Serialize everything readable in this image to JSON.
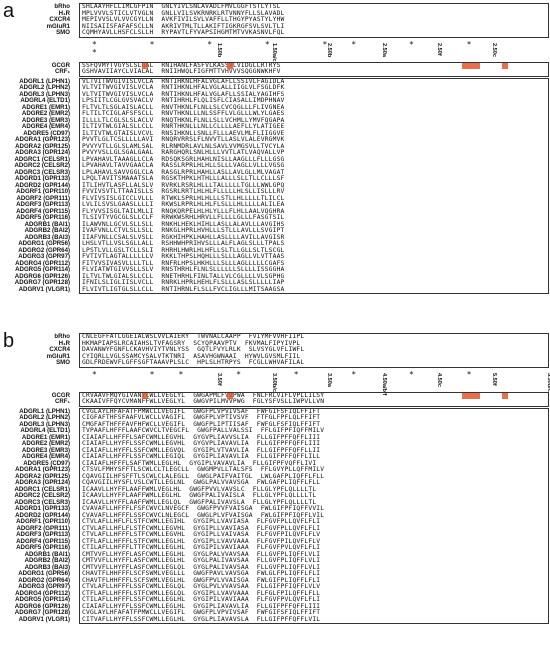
{
  "panels": [
    {
      "letter": "a",
      "top_labels": [
        "bRho",
        "H₁R",
        "CXCR4",
        "mGluR1",
        "SMO"
      ],
      "top_seqs": [
        "SHLAAYHFLLIMLGFPIN  GNLYIVLSNLAVADLFMVLGGFTSTLYTSL",
        "MPLVVVLSTICLVTVGLN  GNLLVILSVKRNRKLRTVNNYFLLSLAVADL",
        "MEPIVVSLVLVVCGYLLN  AVKFIVILSVLVAFFLLTHGYPYASTYLYHW",
        "NIISAIISFAFAFSCLLN  AKRIVTMLTLLAKIFTIGKRGFSVLSVLTLI",
        "CQMHYAVLLHSFCLSLLH  RYPAVTLFYVAPSIHGMTMTVVKASNVLFQL"
      ],
      "ref_labels": [
        "GCGR",
        "CRF₁"
      ],
      "ref_seqs": [
        "SSFQVMYTVGYSLSLGAL  RNIHANLFASFVLKASSVLVIDGLLRTRYS",
        "GSHVAVIIAYCLVIALAL  RNIIHWQLFIGFMTTVHVVVSQGGNWKHFV"
      ],
      "gpcr_labels": [
        "ADGRL1 (LPHN1)",
        "ADGRL2 (LPHN2)",
        "ADGRL3 (LPHN3)",
        "ADGRL4 (ELTD1)",
        "ADGRE1 (EMR1)",
        "ADGRE2 (EMR2)",
        "ADGRE3 (EMR3)",
        "ADGRE4 (EMR4)",
        "ADGRE5 (CD97)",
        "ADGRA1 (GPR123)",
        "ADGRA2 (GPR125)",
        "ADGRA3 (GPR124)",
        "ADGRC1 (CELSR1)",
        "ADGRC2 (CELSR2)",
        "ADGRC3 (CELSR3)",
        "ADGRD1 (GPR133)",
        "ADGRD2 (GPR144)",
        "ADGRF1 (GPR110)",
        "ADGRF2 (GPR111)",
        "ADGRF3 (GPR113)",
        "ADGRF4 (GPR115)",
        "ADGRF5 (GPR116)",
        "ADGRB1 (BAI1)",
        "ADGRB2 (BAI2)",
        "ADGRB3 (BAI3)",
        "ADGRG1 (GPR56)",
        "ADGRG2 (GPR64)",
        "ADGRG3 (GPR97)",
        "ADGRG4 (GPR112)",
        "ADGRG5 (GPR114)",
        "ADGRG6 (GPR126)",
        "ADGRG7 (GPR128)",
        "ADGRV1 (VLGR1)"
      ],
      "gpcr_seqs": [
        "VLTVITWVGIVISLVCLA  RNTIHKNLHFALVGLAFLLSSIVLFAGIDLA",
        "VLTVITWVGIVISLVCLA  RNTIHKNLHFALVGLALLIIGLVLFSGLDFK",
        "VLTVITWVGIVISLVCLA  RNTIHKNLHFALVGLAFLLSSIALYAGIHFS",
        "LPSIITLCGLGVSVACLV  RNTIHRHLFLQLISFLCIASALLIMDPHNAV",
        "FLTVLTLSGLAISLACLL  RNVTHKNLFLNLLSLCVCQGLLLFLIVGNEA",
        "FLTILTCIGLAFSFSCLL  RNVTHKNLLLNLSSFFLVLGLLLWLYLGAES",
        "ILLLLTLCGLSLSLACLV  RNQTHKNLFLNLLSLLVCHMLLYMVFQGAPA",
        "ILTIVTWLGIALSLLCLL  RNRTHKNLLLNLLCLLLLAEFLLYLATIGEE",
        "ILTIVTWLGTAISLVCVL  RNSIHKNLLSNLLFLLLAEVLMLFLIIGGVE",
        "PVVTLGLTCSLLLLLAVI  RNQRVRRSLFLNVVTLLASLVLALEVRGMVK",
        "PVVYVTLLGLSLAMLSAL  RLRNMDRLAVLNLSAVLVVMGSVLLTVCYLA",
        "PVVYVSLLGLSGALGAAL  RARGHQRLSNLHLLLVVTLATLVAQVALLVP",
        "LPVAHAVLTAAAGLLCLA  RDSQKSGRLHAHLNISLLAAGLLLFLLLGSG",
        "LPVAHAVLTAVVGAACLA  RASSLRPRLHLHLLSLLLVAGLLVLLLVGSG",
        "LPLAHAVLSAVVGGLCLA  RASGLRPRLHAHLLASLLAVLGLLMLVAGAT",
        "LPQLTAVITSMAAATSLA  RGSKTHPKLHTHLLLALLLSLLTLLCLLLSF",
        "ITLIHVTLASFLLALSLV  RVRKLRSRLHLLLTALLLLLTGLLLWWLGPQ",
        "FVVIVSVTLTTAAISLLS  RGSRLRRTLHLHLFLLLLLHLSLLISLLLRV",
        "FLVIVSISLGICCLVLLL  RTWKLSPRLHLHLLLSTLLHLLLLLTLILCL",
        "LVLILSVSLGAASLLLLI  RKWSLRPRLHLHLFLSLLLHLLLLLALILEA",
        "FLYVVSISGLTAILMLLI  RNQKQRPELHLHLYLLLFLHLLAALVQGHRA",
        "TLSIVTYVGCGLSLLCLF  RRWKWSRHLHRVLLFLLLLGLLLFASGTSIL",
        "ILAWVNLLGCVLSLLSLL  RNKHLHEKLHIHLLASLLALAVLLLAVGIHS",
        "IVAFVNLLCTVLSLLSLL  RNKGLHPRLHVHLLLSTLLLAVLLLSVGIPT",
        "IIAFVNLLCSALSLVSLL  RGKHIHPKLHAHLLASLLLLAVILLAVGISR",
        "LHSLVTLLVSLSGLLALL  RSHHWHPRIHVSLLLALFLAGLSLLLTPALS",
        "LPSTLVLLGSLTCLLSLI  RHRHLHWRLHLHFLLSLTLLGLLSLTLSCGL",
        "FVTIVTLAGTALLLLLLV  RKKLTHPSLHQHLLLSLLLAGLLVLVTTAAS",
        "FITVVSIVASVLLLLTLL  RNFRLHPSLHKHLLLSLLLAGLLLLLCGAFS",
        "FLVIATWTGIVVSLLSLV  RNSTHRHLFLNLSLLLLLLSLLLLISSGGHA",
        "ILTVLTWLGIALSLLCLL  RNETHRHLFINLTALLVLCGLLLLVLSGPHG",
        "IFNILSLIGLIISLVCLL  RNRKLHPRLHEHLFLSLLLASLSLLLLLIAP",
        "FLVIVTLIGTGLSLLCLL  RNTIHRNLFLSLLFVCLIGLLLMITSAAGSA"
      ],
      "stars": "* * * * ** * * *",
      "bw_labels": [
        "1.50b",
        "1.50a/c",
        "2.50b",
        "2.50a",
        "2.50f",
        "2.50c"
      ]
    },
    {
      "letter": "b",
      "top_labels": [
        "bRho",
        "H₁R",
        "CXCR4",
        "mGluR1",
        "SMO"
      ],
      "top_seqs": [
        "CNLEGFFATLGGEIALWSLVVLAIERY  TWVNALCAAPP  FVIYMFVVHFIIPL",
        "HKMAPIAPSLRCAIAHSLTVFAGSRY  SCYQPAAVPTV  FKVMALFIPYIVPL",
        "DAVANWYFGNFLCKAVHVIYTVNLYSS  GQTLFVYLRLK  SLVSYGLVFLIWFL",
        "CYIQRLLVGLSSAMCYSALVTKTNRI  ASAVHGWNAAI  HYWVLGVSMLFIIL",
        "GDLFRDEWVFLGFFSGFTAAAVPLSLC  HPLSLHTRPYS  FCGLLWHVAFILAL"
      ],
      "ref_labels": [
        "GCGR",
        "CRF₁"
      ],
      "ref_seqs": [
        "CRVAAVFMQYGIVANYCWLLVEGLYL  GWGAPMLFVVPWA  FNLFRLVIFLVPLLILSY",
        "CKAAIVFFQYCVMANFFWLLVEGLYL  GWGVPILMVVPWG  FGLYSFVSLLIWPVLLVN"
      ],
      "gpcr_labels": [
        "ADGRL1 (LPHN1)",
        "ADGRL2 (LPHN2)",
        "ADGRL3 (LPHN3)",
        "ADGRL4 (ELTD1)",
        "ADGRE1 (EMR1)",
        "ADGRE2 (EMR2)",
        "ADGRE3 (EMR3)",
        "ADGRE4 (EMR4)",
        "ADGRE5 (CD97)",
        "ADGRA1 (GPR123)",
        "ADGRA2 (GPR125)",
        "ADGRA3 (GPR124)",
        "ADGRC1 (CELSR1)",
        "ADGRC2 (CELSR2)",
        "ADGRC3 (CELSR3)",
        "ADGRD1 (GPR133)",
        "ADGRD2 (GPR144)",
        "ADGRF1 (GPR110)",
        "ADGRF2 (GPR111)",
        "ADGRF3 (GPR113)",
        "ADGRF4 (GPR115)",
        "ADGRF5 (GPR116)",
        "ADGRB1 (BAI1)",
        "ADGRB2 (BAI2)",
        "ADGRB3 (BAI3)",
        "ADGRG1 (GPR56)",
        "ADGRG2 (GPR64)",
        "ADGRG3 (GPR97)",
        "ADGRG4 (GPR112)",
        "ADGRG5 (GPR114)",
        "ADGRG6 (GPR126)",
        "ADGRG7 (GPR128)",
        "ADGRV1 (VLGR1)"
      ],
      "gpcr_seqs": [
        "CVGLAYLHFAFATFPMWCLLVEGIFL  GWGFPLVPVIVSAF  FWFGIFSFIQLFFIFT",
        "CIGFAFTHFSFAAFVLWCLLVAGIFL  GWGFPLVPTIVSVF  FTFGLFPFLQLFFIFT",
        "CMGFAFTHFFFAVFHFWCLLVEGIFL  GWGFPLIPTIISAF  FWFGLFSFIQLFFIFT",
        "TVPAAFLHFFFLAAFCWVCLTVEGCFL  GWGFPALLVALSSI  FFLGIFPFIQFFMILV",
        "CIAIAFLLHFFFLSAFCWMLLEGVHL  GYGVPLIAVVSLIA  FLLGIFPFFQFFLIII",
        "CIAIAFLLHYFFLSSFCWMLLEGVHL  GYGVPLIAVAVLIA  FLLGIFPFFQFFLIII",
        "CIAIAFLLHYFFLSSFCWMLLEGVQL  GYGIPLVTVAVLIA  FLLGIFPFFQFFLLII",
        "CIAIAFLLHFFFLSSFCWMLLEGIQL  GYGIPLIAVAVLIA  FLLGIFPFFQFFLILL",
        "CIAIAFLHFFFLSAFTWMLLEGLHL  GYGIPLVAVAVLIA  FLLGIFPFVQFFLIVI",
        "CTSVLFMHYSFFTLSCWLCLTLEGCLL  GWGMPVLLTALSFS  FFLGVYPLLQFFMILV",
        "CQAVGIILHFSFFTLSCWLCLALEGLL  GWGLPAIFVAITGL  LWLGAFPLIQFFLFLL",
        "CQAVGIILHYSFLVSLCWTLLEGLNL  GWGLPALVVAVSGA  FWLGAFPLIQFFLFLL",
        "ICAAVLLHYFFLAAFFWMLVEGLHL  GWGFPVVLVAVSLC  FLLGLYPFLQLLLLTL",
        "ICAAVLLHYFFLAAFFWMLLEGLHL  GWGFPALIVAISLA  FLLGLYPFLQLLLLTL",
        "ICAAVLLHYFFLAAFFWMLLEGLQL  GWGFPALIVAVSLA  FLLGLYPFLQLLLLTL",
        "CVAVAFLLHFFFLFSFCWVCLNVEGCF  GWGFPVVFVAISGA  FWLGIFPFIQFFVVIL",
        "CVAVAFLLHFFFLSSFCWVCLNLEGCL  GWGLPLVFVAISGA  FWLGIFPFIQFFLVIL",
        "CTVLAFLLHFLFLSTFCWMLLEGIHL  GYGIPLLVAVIASA  FLFGVFPLLQVFLFLI",
        "CTVLAFLLHFLFLSTFCWMLLEGVHL  GYGIPLLVAVIASA  FLFGVFPLLQVFLFLI",
        "CTVLAFLLHFFFLSTFCWMLLEGVHL  GYGIPLLVAIVASA  FLFGVFPILQVFLFLV",
        "CTFLAFLLHFFFLSTFCWMLLEGLHL  GYGIPLLVAVVAAA  FLFGVFPILQVFLFLV",
        "CTILAFLLHFFFLTTFCWMLLEGLHL  GYGIPILVAVIAAA  FLFGVFPVLQVFLFLI",
        "CMTVVFLLHYFFLASFCWMLLEGLHL  GYGLPALVVAVSAA  FLLGVFPLIQFFLVLI",
        "CMTVVFLLHYFFLASFCWMLLEGLHL  GYGLPALIVAVSAA  FLLGVFPLIQFFLVLI",
        "CMTVVFLLHYFFLASFCWMLLEGLQL  GYGLPALIVAVSAA  FLLGVFPLIQFFLVLI",
        "CHAVTFLHHFFFLSCFSWMLVEGLLL  GWGFPAVLVAVSGA  FWLGLFPLIQFFLFLI",
        "CHAVTFLHHFFFLSCFSWMLVEGLHL  GWGFPVLVVAISGA  FWLGIFPLIQFFLFLI",
        "CTVLAFLLHFFFLSSFCWMLLEGLQL  GYGLPVLVVAVSAA  FLLGIFPFIQFFLVLV",
        "CTFLAFLLHFFFLSTFCWMLLEGLQL  GYGIPLLVAVVAAA  FLFGLFPILQFFLFLL",
        "CTILAFLLHFFFLSSFCWMLLEGLHL  GYGIPILVAVIAAA  FLFGVFPVLQVFLFLI",
        "CIAIAFLLHYFFLSSFCWMLLEGLHL  GYGIPLIAVAVLIA  FLLGIFPFFQFFLIII",
        "CVGLAYLHFAFATFPMWCLLVEGIFL  GWGFPLVPVIVSAF  FWFGIFSFIQLFFIFT",
        "CITVAFLLHYFFLSSFCWMLLEGLHL  GYGLPLIAVAVSLA  FLLGIFPFFQFFLVIL"
      ],
      "stars": "* ** * * * * *",
      "bw_labels": [
        "3.50f",
        "3.50b/c",
        "3.50a",
        "4.50a/b/f",
        "4.50c",
        "5.50f",
        "5.50b/c",
        "5.50a"
      ]
    }
  ]
}
